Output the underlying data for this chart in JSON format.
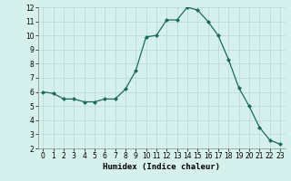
{
  "xlabel": "Humidex (Indice chaleur)",
  "x": [
    0,
    1,
    2,
    3,
    4,
    5,
    6,
    7,
    8,
    9,
    10,
    11,
    12,
    13,
    14,
    15,
    16,
    17,
    18,
    19,
    20,
    21,
    22,
    23
  ],
  "y": [
    6.0,
    5.9,
    5.5,
    5.5,
    5.3,
    5.3,
    5.5,
    5.5,
    6.2,
    7.5,
    9.9,
    10.0,
    11.1,
    11.1,
    12.0,
    11.8,
    11.0,
    10.0,
    8.3,
    6.3,
    5.0,
    3.5,
    2.6,
    2.3
  ],
  "line_color": "#1a6b5a",
  "marker": "D",
  "marker_size": 2.0,
  "bg_color": "#d6f0ee",
  "grid_color": "#b5d8d4",
  "ylim": [
    2,
    12
  ],
  "xlim": [
    -0.5,
    23.5
  ],
  "yticks": [
    2,
    3,
    4,
    5,
    6,
    7,
    8,
    9,
    10,
    11,
    12
  ],
  "xticks": [
    0,
    1,
    2,
    3,
    4,
    5,
    6,
    7,
    8,
    9,
    10,
    11,
    12,
    13,
    14,
    15,
    16,
    17,
    18,
    19,
    20,
    21,
    22,
    23
  ],
  "tick_fontsize": 5.5,
  "xlabel_fontsize": 6.5,
  "linewidth": 0.9
}
